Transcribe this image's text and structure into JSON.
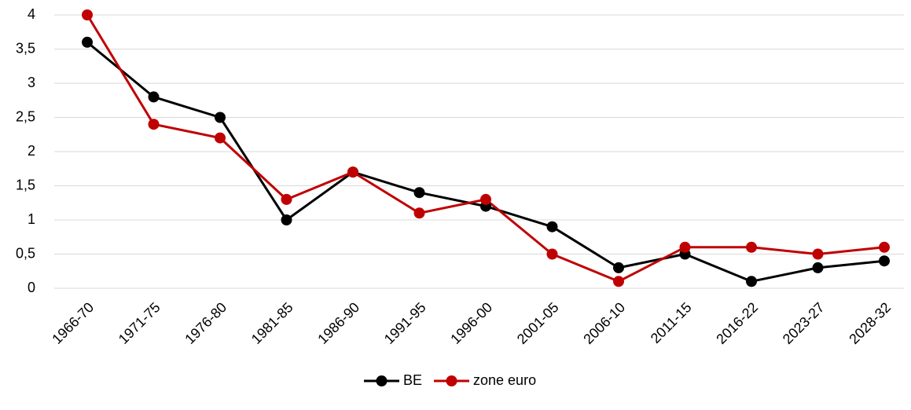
{
  "chart_data": {
    "type": "line",
    "categories": [
      "1966-70",
      "1971-75",
      "1976-80",
      "1981-85",
      "1986-90",
      "1991-95",
      "1996-00",
      "2001-05",
      "2006-10",
      "2011-15",
      "2016-22",
      "2023-27",
      "2028-32"
    ],
    "series": [
      {
        "name": "BE",
        "color": "#000000",
        "values": [
          3.6,
          2.8,
          2.5,
          1.0,
          1.7,
          1.4,
          1.2,
          0.9,
          0.3,
          0.5,
          0.1,
          0.3,
          0.4
        ]
      },
      {
        "name": "zone euro",
        "color": "#c00000",
        "values": [
          4.0,
          2.4,
          2.2,
          1.3,
          1.7,
          1.1,
          1.3,
          0.5,
          0.1,
          0.6,
          0.6,
          0.5,
          0.6
        ]
      }
    ],
    "ylim": [
      0,
      4
    ],
    "yticks": [
      0,
      {
        "value": 0.5,
        "label": "0,5"
      },
      1,
      {
        "value": 1.5,
        "label": "1,5"
      },
      2,
      {
        "value": 2.5,
        "label": "2,5"
      },
      3,
      {
        "value": 3.5,
        "label": "3,5"
      },
      4
    ],
    "grid": true,
    "legend": "bottom"
  }
}
